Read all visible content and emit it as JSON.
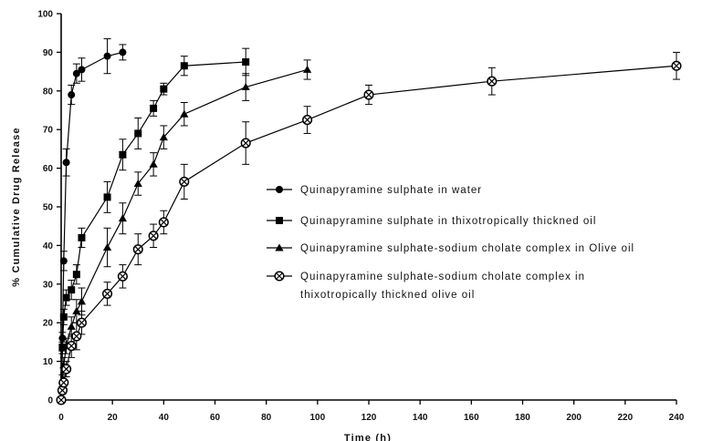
{
  "chart_data": {
    "type": "line",
    "title": "",
    "xlabel": "Time (h)",
    "ylabel": "% Cumulative Drug Release",
    "xlim": [
      0,
      240
    ],
    "ylim": [
      0,
      100
    ],
    "x_ticks": [
      0,
      20,
      40,
      60,
      80,
      100,
      120,
      140,
      160,
      180,
      200,
      220,
      240
    ],
    "y_ticks": [
      0,
      10,
      20,
      30,
      40,
      50,
      60,
      70,
      80,
      90,
      100
    ],
    "grid": false,
    "legend_position": "center-right",
    "series": [
      {
        "name": "Quinapyramine sulphate in water",
        "marker": "circle",
        "x": [
          0,
          0.5,
          1,
          2,
          4,
          6,
          8,
          18,
          24
        ],
        "y": [
          0,
          16,
          36,
          61.5,
          79,
          84.5,
          85.5,
          89,
          90
        ],
        "err": [
          0,
          1.5,
          2.5,
          3.5,
          2.5,
          2.5,
          3,
          4.5,
          2
        ]
      },
      {
        "name": "Quinapyramine sulphate in thixotropically thickned oil",
        "marker": "square",
        "x": [
          0,
          0.5,
          1,
          2,
          4,
          6,
          8,
          18,
          24,
          30,
          36,
          40,
          48,
          72
        ],
        "y": [
          0,
          13.5,
          21.5,
          26.5,
          28.5,
          32.5,
          42,
          52.5,
          63.5,
          69,
          75.5,
          80.5,
          86.5,
          87.5
        ],
        "err": [
          0,
          1.5,
          2,
          2,
          2.5,
          2.5,
          2.5,
          4,
          4,
          4,
          2,
          1.5,
          2.5,
          3.5
        ]
      },
      {
        "name": "Quinapyramine sulphate-sodium cholate complex in Olive oil",
        "marker": "triangle",
        "x": [
          0,
          0.5,
          1,
          2,
          4,
          6,
          8,
          18,
          24,
          30,
          36,
          40,
          48,
          72,
          96
        ],
        "y": [
          0,
          5,
          9,
          14,
          19,
          23,
          25.5,
          39.5,
          47,
          56,
          61,
          68,
          74,
          81,
          85.5
        ],
        "err": [
          0,
          1.5,
          2,
          2,
          2.5,
          3,
          3.5,
          5,
          4,
          3,
          3,
          3,
          3,
          3.5,
          2.5
        ]
      },
      {
        "name": "Quinapyramine sulphate-sodium cholate complex in thixotropically thickned olive oil",
        "marker": "circle-cross",
        "x": [
          0,
          0.5,
          1,
          2,
          4,
          6,
          8,
          18,
          24,
          30,
          36,
          40,
          48,
          72,
          96,
          120,
          168,
          240
        ],
        "y": [
          0,
          2.5,
          4.5,
          8,
          14,
          16.5,
          20,
          27.5,
          32,
          39,
          42.5,
          46,
          56.5,
          66.5,
          72.5,
          79,
          82.5,
          86.5
        ],
        "err": [
          0,
          1,
          1.5,
          2,
          3,
          3.5,
          3,
          3,
          3,
          4,
          3,
          3,
          4.5,
          5.5,
          3.5,
          2.5,
          3.5,
          3.5
        ]
      }
    ],
    "legend_lines": [
      [
        "Quinapyramine sulphate in water"
      ],
      [
        "Quinapyramine sulphate in thixotropically thickned oil"
      ],
      [
        "Quinapyramine sulphate-sodium cholate complex in Olive oil"
      ],
      [
        "Quinapyramine sulphate-sodium cholate complex in",
        "thixotropically thickned olive oil"
      ]
    ]
  }
}
